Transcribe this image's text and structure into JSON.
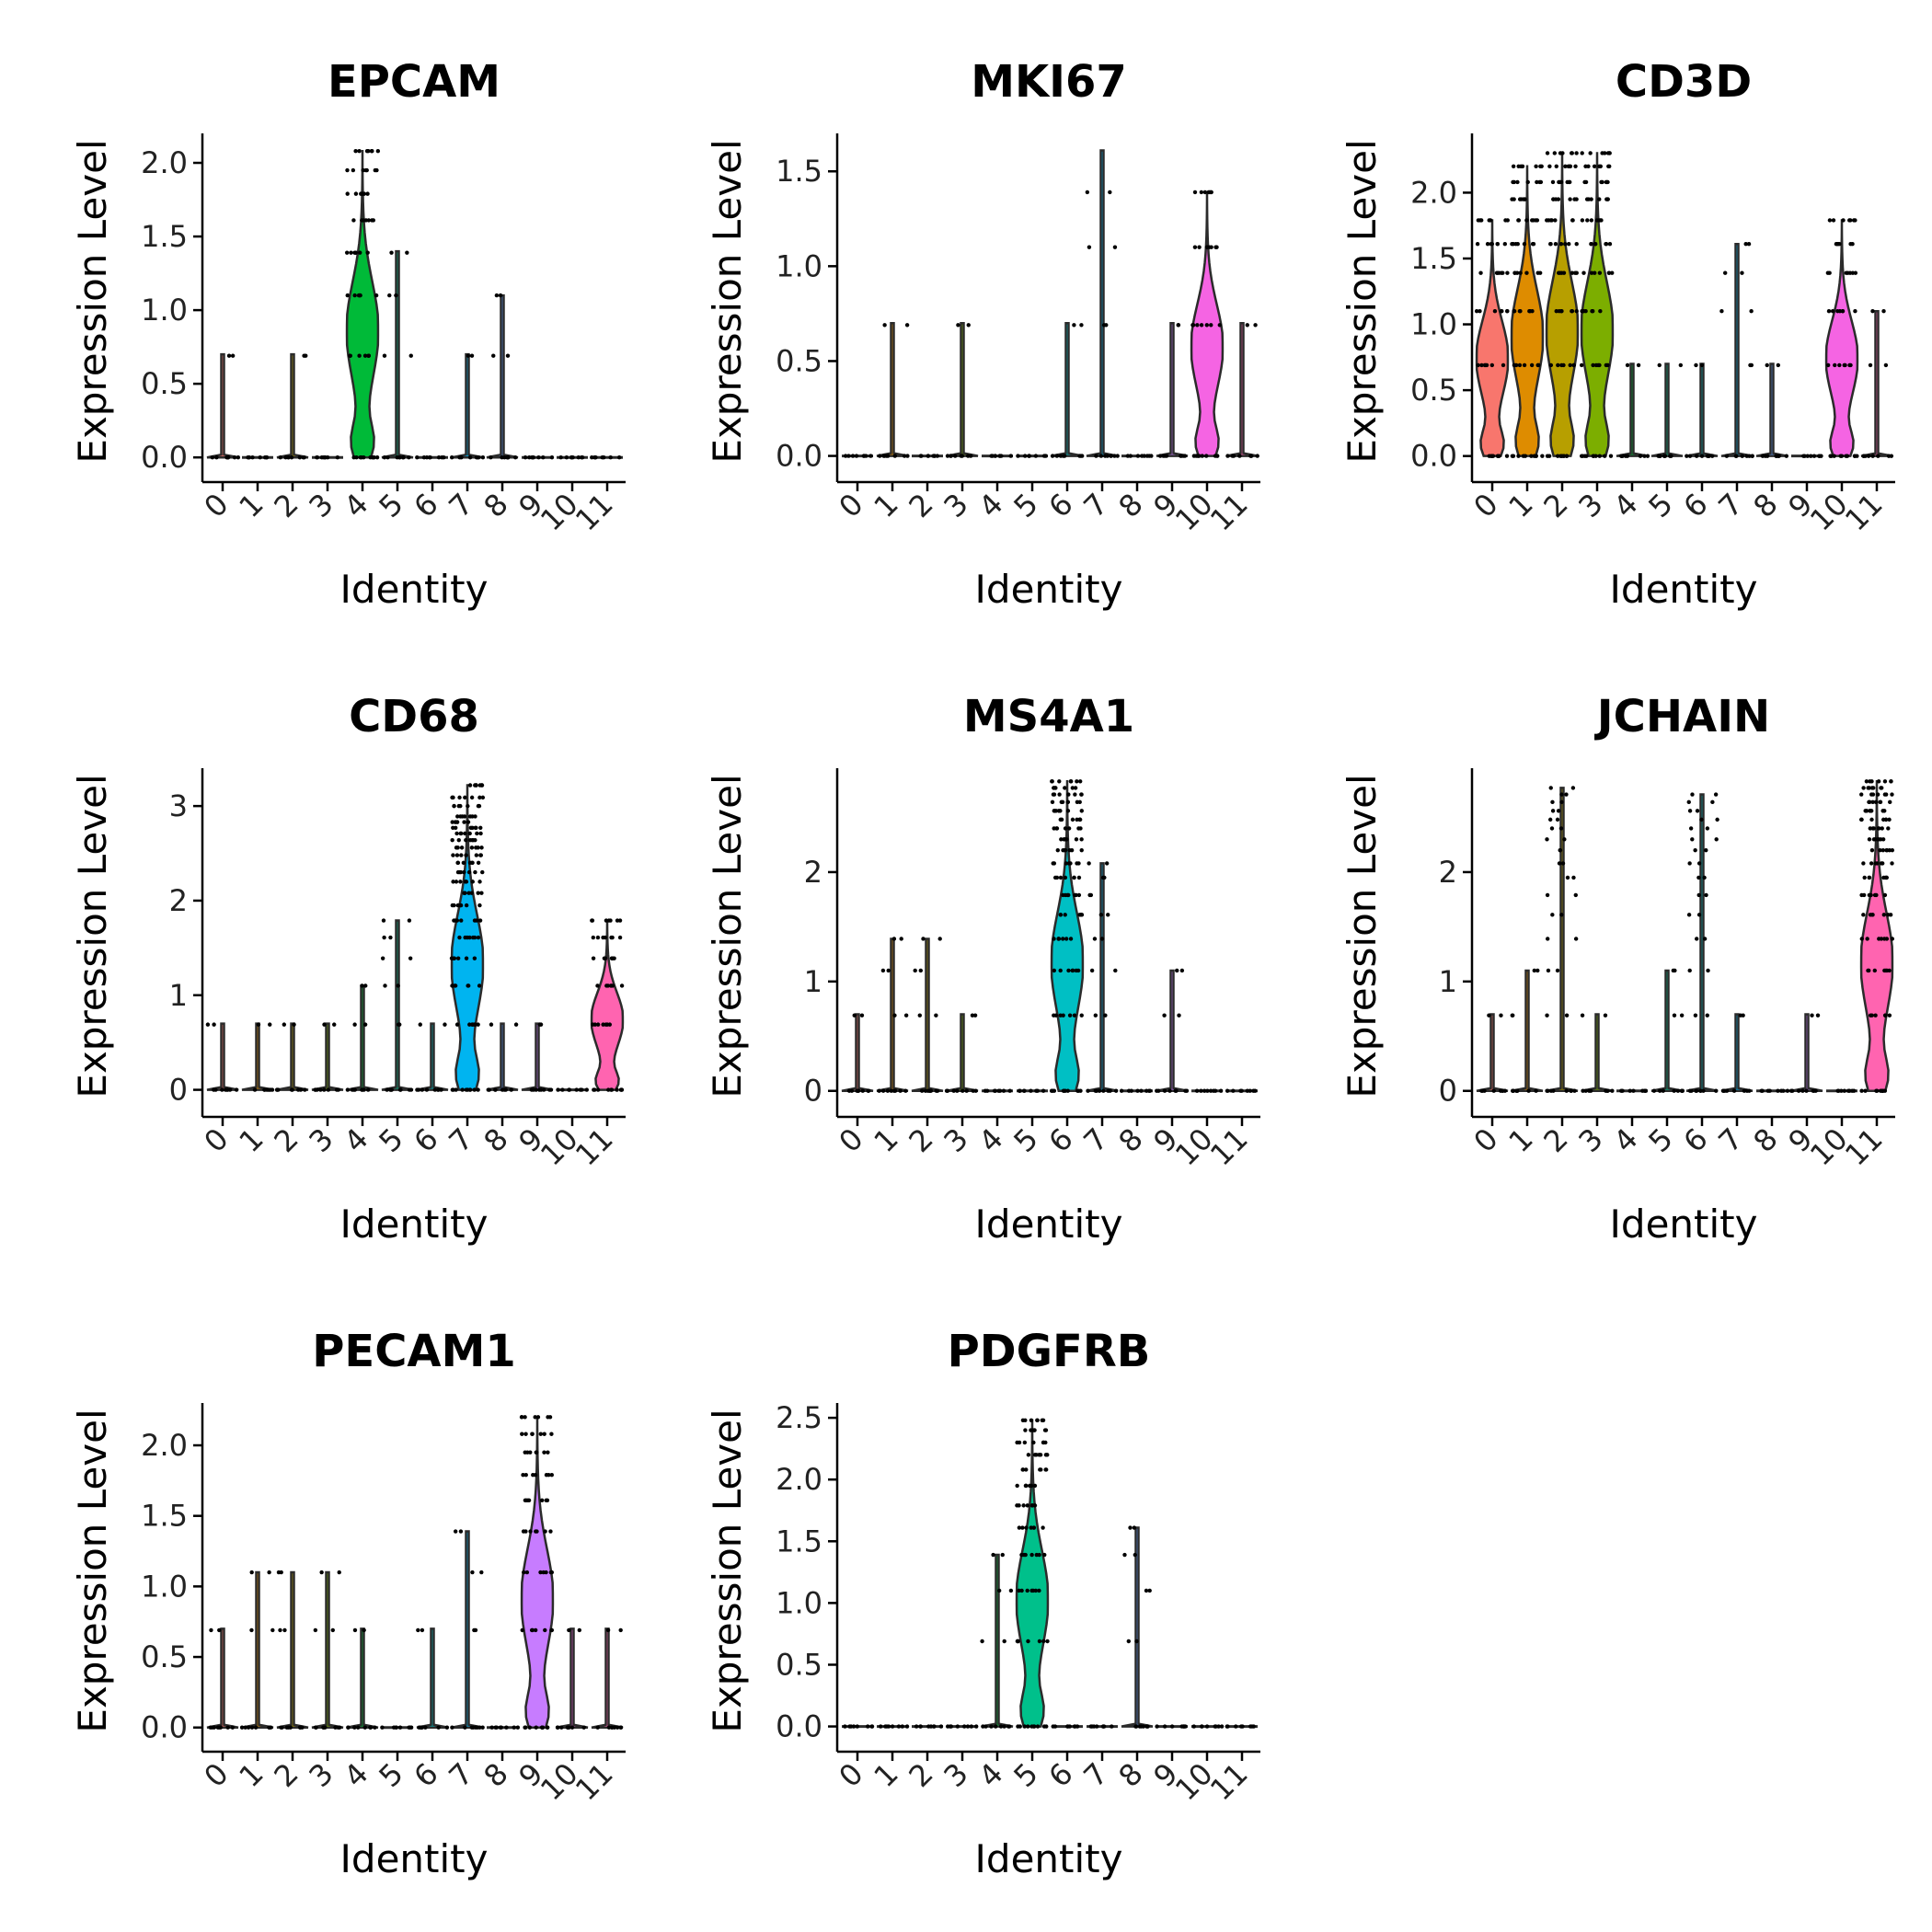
{
  "chart_data": [
    {
      "type": "violin",
      "title": "EPCAM",
      "xlabel": "Identity",
      "ylabel": "Expression Level",
      "categories": [
        "0",
        "1",
        "2",
        "3",
        "4",
        "5",
        "6",
        "7",
        "8",
        "9",
        "10",
        "11"
      ],
      "yticks": [
        "0.0",
        "0.5",
        "1.0",
        "1.5",
        "2.0"
      ],
      "ylim": [
        -0.08,
        2.2
      ],
      "fills": [
        "#F8766D",
        "#DE8C00",
        "#B79F00",
        "#7CAE00",
        "#00BA38",
        "#00C08B",
        "#00BFC4",
        "#00B4F0",
        "#619CFF",
        "#C77CFF",
        "#F564E3",
        "#FF64B0"
      ],
      "max": [
        0.7,
        0,
        0.7,
        0,
        2.08,
        1.4,
        0,
        0.7,
        1.1,
        0,
        0,
        0
      ],
      "highlight": 4,
      "levels": [
        0,
        0.69,
        1.1,
        1.39,
        1.61,
        1.79,
        1.95,
        2.08
      ]
    },
    {
      "type": "violin",
      "title": "MKI67",
      "xlabel": "Identity",
      "ylabel": "Expression Level",
      "categories": [
        "0",
        "1",
        "2",
        "3",
        "4",
        "5",
        "6",
        "7",
        "8",
        "9",
        "10",
        "11"
      ],
      "yticks": [
        "0.0",
        "0.5",
        "1.0",
        "1.5"
      ],
      "ylim": [
        -0.07,
        1.7
      ],
      "fills": [
        "#F8766D",
        "#DE8C00",
        "#B79F00",
        "#7CAE00",
        "#00BA38",
        "#00C08B",
        "#00BFC4",
        "#00B4F0",
        "#619CFF",
        "#C77CFF",
        "#F564E3",
        "#FF64B0"
      ],
      "max": [
        0,
        0.7,
        0,
        0.7,
        0,
        0,
        0.7,
        1.61,
        0,
        0.7,
        1.39,
        0.7
      ],
      "highlight": 10,
      "levels": [
        0,
        0.69,
        1.1,
        1.39
      ]
    },
    {
      "type": "violin",
      "title": "CD3D",
      "xlabel": "Identity",
      "ylabel": "Expression Level",
      "categories": [
        "0",
        "1",
        "2",
        "3",
        "4",
        "5",
        "6",
        "7",
        "8",
        "9",
        "10",
        "11"
      ],
      "yticks": [
        "0.0",
        "0.5",
        "1.0",
        "1.5",
        "2.0"
      ],
      "ylim": [
        -0.1,
        2.45
      ],
      "fills": [
        "#F8766D",
        "#DE8C00",
        "#B79F00",
        "#7CAE00",
        "#00BA38",
        "#00C08B",
        "#00BFC4",
        "#00B4F0",
        "#619CFF",
        "#C77CFF",
        "#F564E3",
        "#FF64B0"
      ],
      "max": [
        1.79,
        2.2,
        2.3,
        2.3,
        0.7,
        0.7,
        0.7,
        1.61,
        0.7,
        0,
        1.79,
        1.1
      ],
      "highlight": [
        0,
        1,
        2,
        3,
        10
      ],
      "levels": [
        0,
        0.69,
        1.1,
        1.39,
        1.61,
        1.79,
        1.95,
        2.08,
        2.2,
        2.3
      ]
    },
    {
      "type": "violin",
      "title": "CD68",
      "xlabel": "Identity",
      "ylabel": "Expression Level",
      "categories": [
        "0",
        "1",
        "2",
        "3",
        "4",
        "5",
        "6",
        "7",
        "8",
        "9",
        "10",
        "11"
      ],
      "yticks": [
        "0",
        "1",
        "2",
        "3"
      ],
      "ylim": [
        -0.15,
        3.4
      ],
      "fills": [
        "#F8766D",
        "#DE8C00",
        "#B79F00",
        "#7CAE00",
        "#00BA38",
        "#00C08B",
        "#00BFC4",
        "#00B4F0",
        "#619CFF",
        "#C77CFF",
        "#F564E3",
        "#FF64B0"
      ],
      "max": [
        0.7,
        0.7,
        0.7,
        0.7,
        1.1,
        1.79,
        0.7,
        3.22,
        0.7,
        0.7,
        0,
        1.79
      ],
      "highlight": [
        7,
        11
      ],
      "levels": [
        0,
        0.69,
        1.1,
        1.39,
        1.61,
        1.79,
        1.95,
        2.08,
        2.2,
        2.3,
        2.4,
        2.48,
        2.56,
        2.64,
        2.71,
        2.77,
        2.83,
        2.89,
        3.0,
        3.09,
        3.22
      ]
    },
    {
      "type": "violin",
      "title": "MS4A1",
      "xlabel": "Identity",
      "ylabel": "Expression Level",
      "categories": [
        "0",
        "1",
        "2",
        "3",
        "4",
        "5",
        "6",
        "7",
        "8",
        "9",
        "10",
        "11"
      ],
      "yticks": [
        "0",
        "1",
        "2"
      ],
      "ylim": [
        -0.12,
        2.95
      ],
      "fills": [
        "#F8766D",
        "#DE8C00",
        "#B79F00",
        "#7CAE00",
        "#00BA38",
        "#00C08B",
        "#00BFC4",
        "#00B4F0",
        "#619CFF",
        "#C77CFF",
        "#F564E3",
        "#FF64B0"
      ],
      "max": [
        0.7,
        1.39,
        1.39,
        0.7,
        0,
        0,
        2.83,
        2.08,
        0,
        1.1,
        0,
        0
      ],
      "highlight": 6,
      "levels": [
        0,
        0.69,
        1.1,
        1.39,
        1.61,
        1.79,
        1.95,
        2.08,
        2.2,
        2.3,
        2.4,
        2.48,
        2.56,
        2.64,
        2.71,
        2.77,
        2.83
      ]
    },
    {
      "type": "violin",
      "title": "JCHAIN",
      "xlabel": "Identity",
      "ylabel": "Expression Level",
      "categories": [
        "0",
        "1",
        "2",
        "3",
        "4",
        "5",
        "6",
        "7",
        "8",
        "9",
        "10",
        "11"
      ],
      "yticks": [
        "0",
        "1",
        "2"
      ],
      "ylim": [
        -0.12,
        2.95
      ],
      "fills": [
        "#F8766D",
        "#DE8C00",
        "#B79F00",
        "#7CAE00",
        "#00BA38",
        "#00C08B",
        "#00BFC4",
        "#00B4F0",
        "#619CFF",
        "#C77CFF",
        "#F564E3",
        "#FF64B0"
      ],
      "max": [
        0.7,
        1.1,
        2.77,
        0.7,
        0,
        1.1,
        2.71,
        0.7,
        0,
        0.7,
        0,
        2.83
      ],
      "highlight": 11,
      "levels": [
        0,
        0.69,
        1.1,
        1.39,
        1.61,
        1.79,
        1.95,
        2.08,
        2.2,
        2.3,
        2.4,
        2.48,
        2.56,
        2.64,
        2.71,
        2.77,
        2.83
      ]
    },
    {
      "type": "violin",
      "title": "PECAM1",
      "xlabel": "Identity",
      "ylabel": "Expression Level",
      "categories": [
        "0",
        "1",
        "2",
        "3",
        "4",
        "5",
        "6",
        "7",
        "8",
        "9",
        "10",
        "11"
      ],
      "yticks": [
        "0.0",
        "0.5",
        "1.0",
        "1.5",
        "2.0"
      ],
      "ylim": [
        -0.08,
        2.3
      ],
      "fills": [
        "#F8766D",
        "#DE8C00",
        "#B79F00",
        "#7CAE00",
        "#00BA38",
        "#00C08B",
        "#00BFC4",
        "#00B4F0",
        "#619CFF",
        "#C77CFF",
        "#F564E3",
        "#FF64B0"
      ],
      "max": [
        0.7,
        1.1,
        1.1,
        1.1,
        0.7,
        0,
        0.7,
        1.39,
        0,
        2.2,
        0.7,
        0.7
      ],
      "highlight": 9,
      "levels": [
        0,
        0.69,
        1.1,
        1.39,
        1.61,
        1.79,
        1.95,
        2.08,
        2.2
      ]
    },
    {
      "type": "violin",
      "title": "PDGFRB",
      "xlabel": "Identity",
      "ylabel": "Expression Level",
      "categories": [
        "0",
        "1",
        "2",
        "3",
        "4",
        "5",
        "6",
        "7",
        "8",
        "9",
        "10",
        "11"
      ],
      "yticks": [
        "0.0",
        "0.5",
        "1.0",
        "1.5",
        "2.0",
        "2.5"
      ],
      "ylim": [
        -0.1,
        2.62
      ],
      "fills": [
        "#F8766D",
        "#DE8C00",
        "#B79F00",
        "#7CAE00",
        "#00BA38",
        "#00C08B",
        "#00BFC4",
        "#00B4F0",
        "#619CFF",
        "#C77CFF",
        "#F564E3",
        "#FF64B0"
      ],
      "max": [
        0,
        0,
        0,
        0,
        1.39,
        2.48,
        0,
        0,
        1.61,
        0,
        0,
        0
      ],
      "highlight": 5,
      "levels": [
        0,
        0.69,
        1.1,
        1.39,
        1.61,
        1.79,
        1.95,
        2.08,
        2.2,
        2.3,
        2.4,
        2.48
      ]
    }
  ]
}
